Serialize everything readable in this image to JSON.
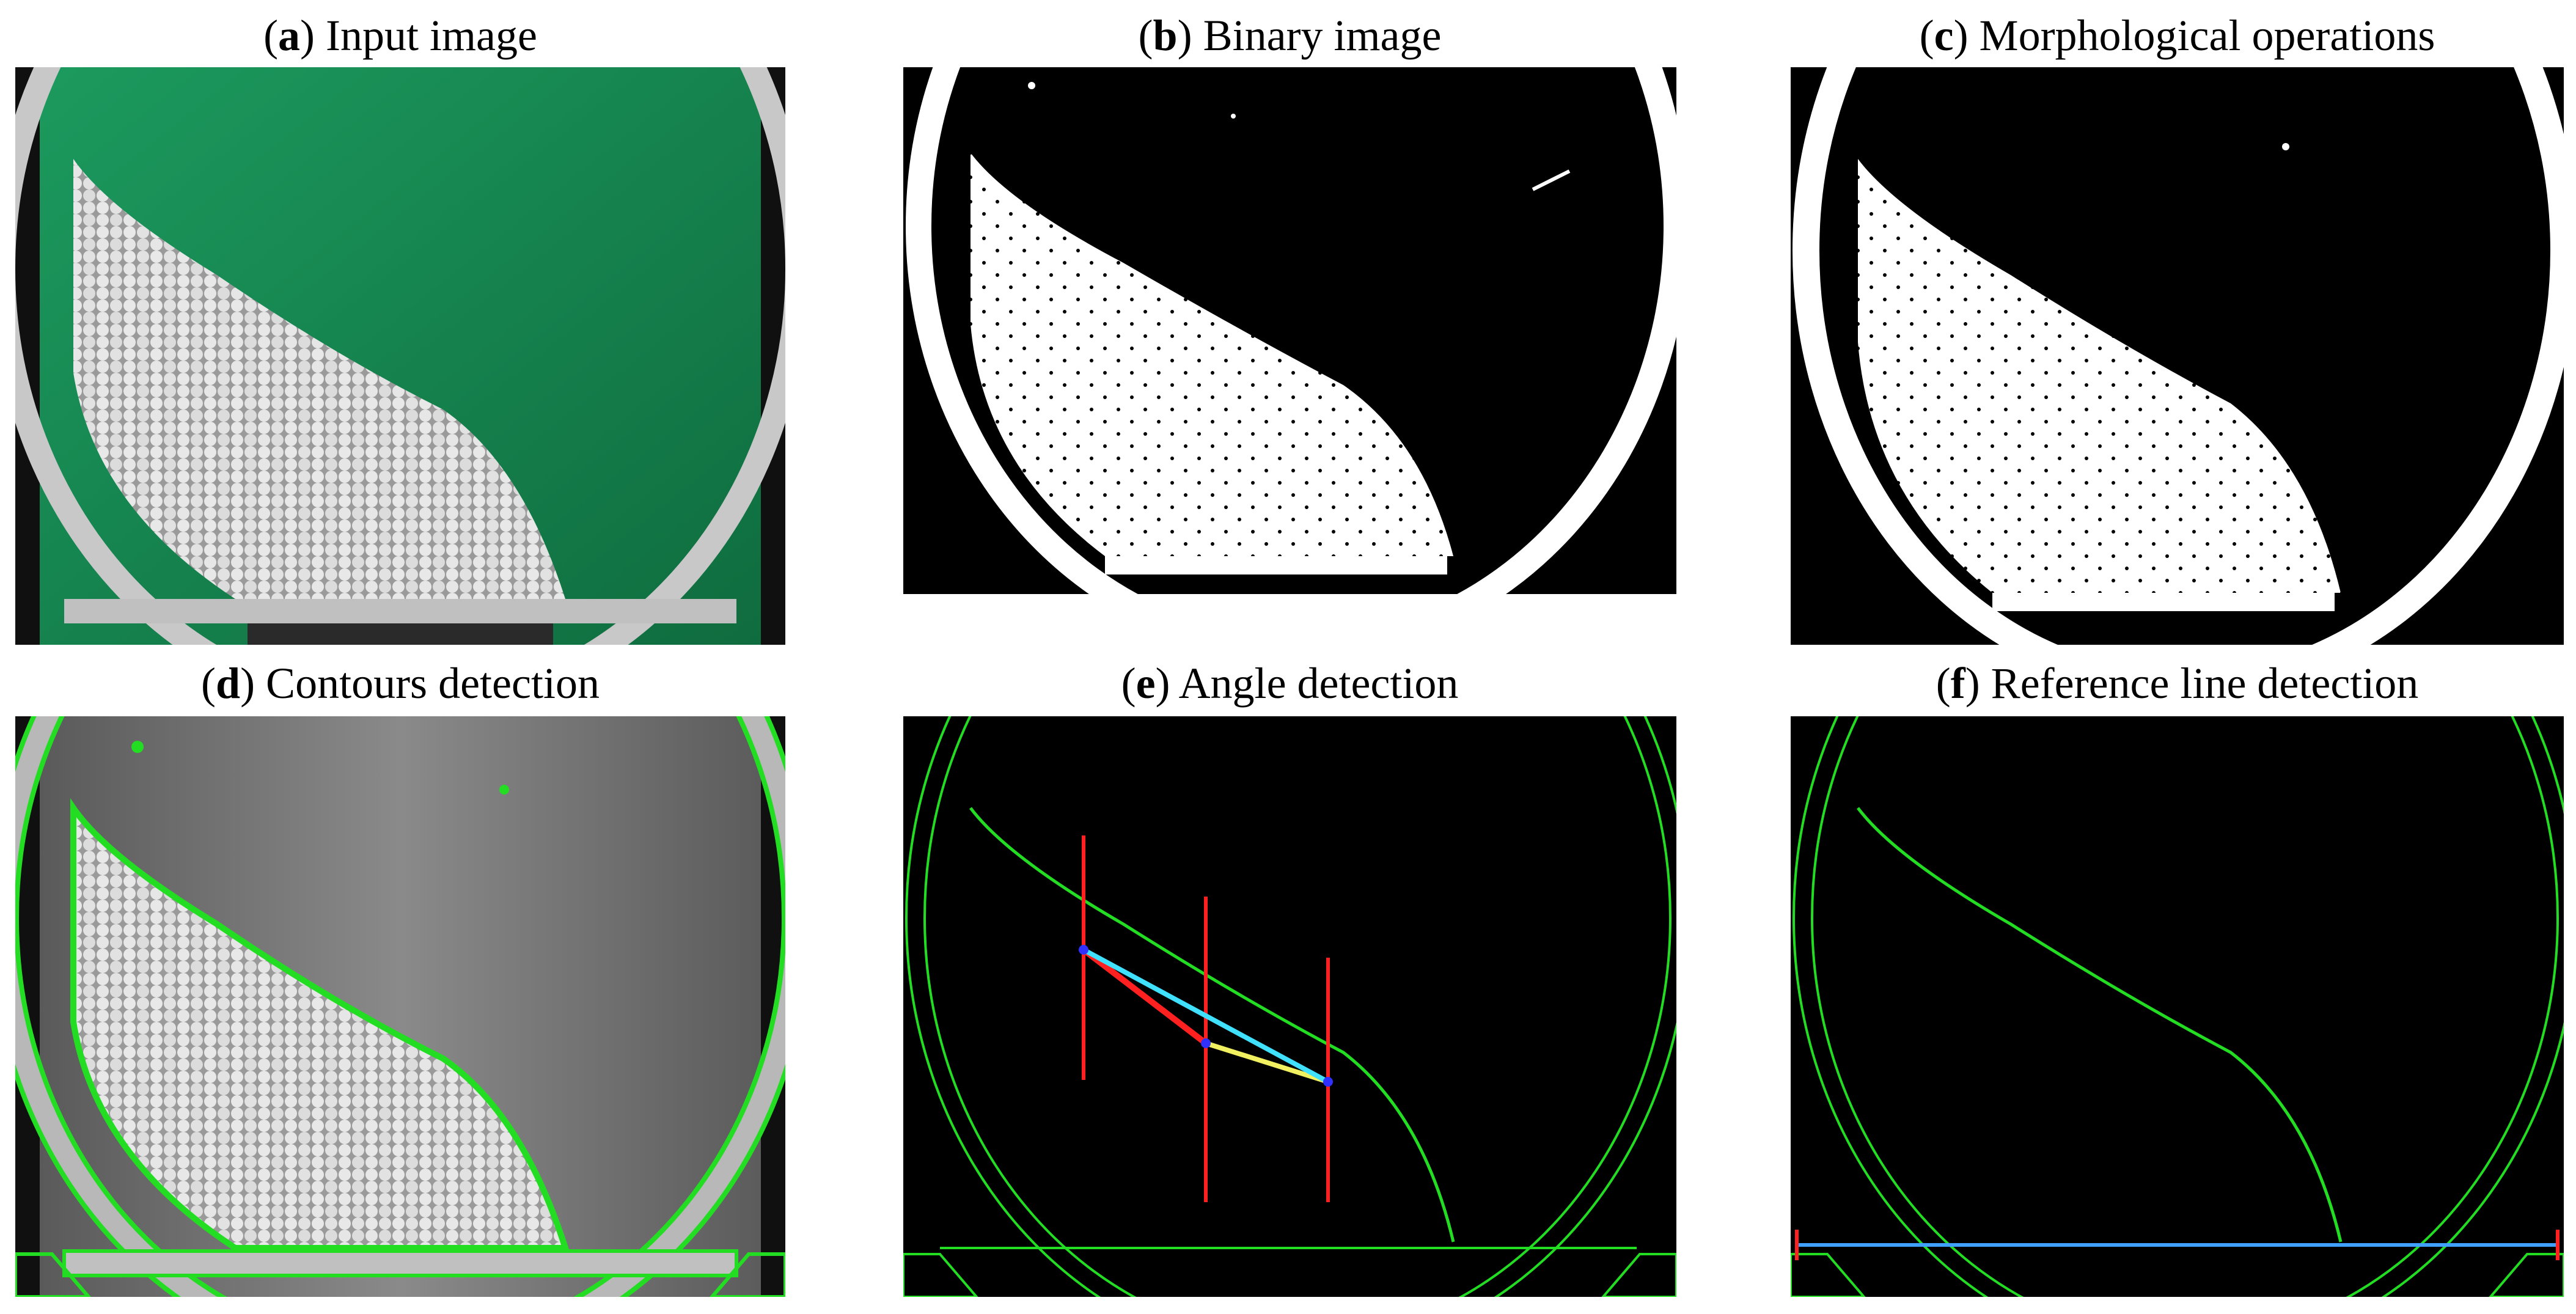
{
  "figure": {
    "panels": [
      {
        "letter": "a",
        "title": "Input image"
      },
      {
        "letter": "b",
        "title": "Binary image"
      },
      {
        "letter": "c",
        "title": "Morphological operations"
      },
      {
        "letter": "d",
        "title": "Contours detection"
      },
      {
        "letter": "e",
        "title": "Angle detection"
      },
      {
        "letter": "f",
        "title": "Reference line detection"
      }
    ]
  },
  "colors": {
    "green_panel_bg": "#1a8f55",
    "contour_green": "#22dd22",
    "marker_red": "#ff2020",
    "fit_cyan": "#40e0ff",
    "fit_yellow": "#f0f060",
    "reference_blue": "#40a0ff"
  }
}
